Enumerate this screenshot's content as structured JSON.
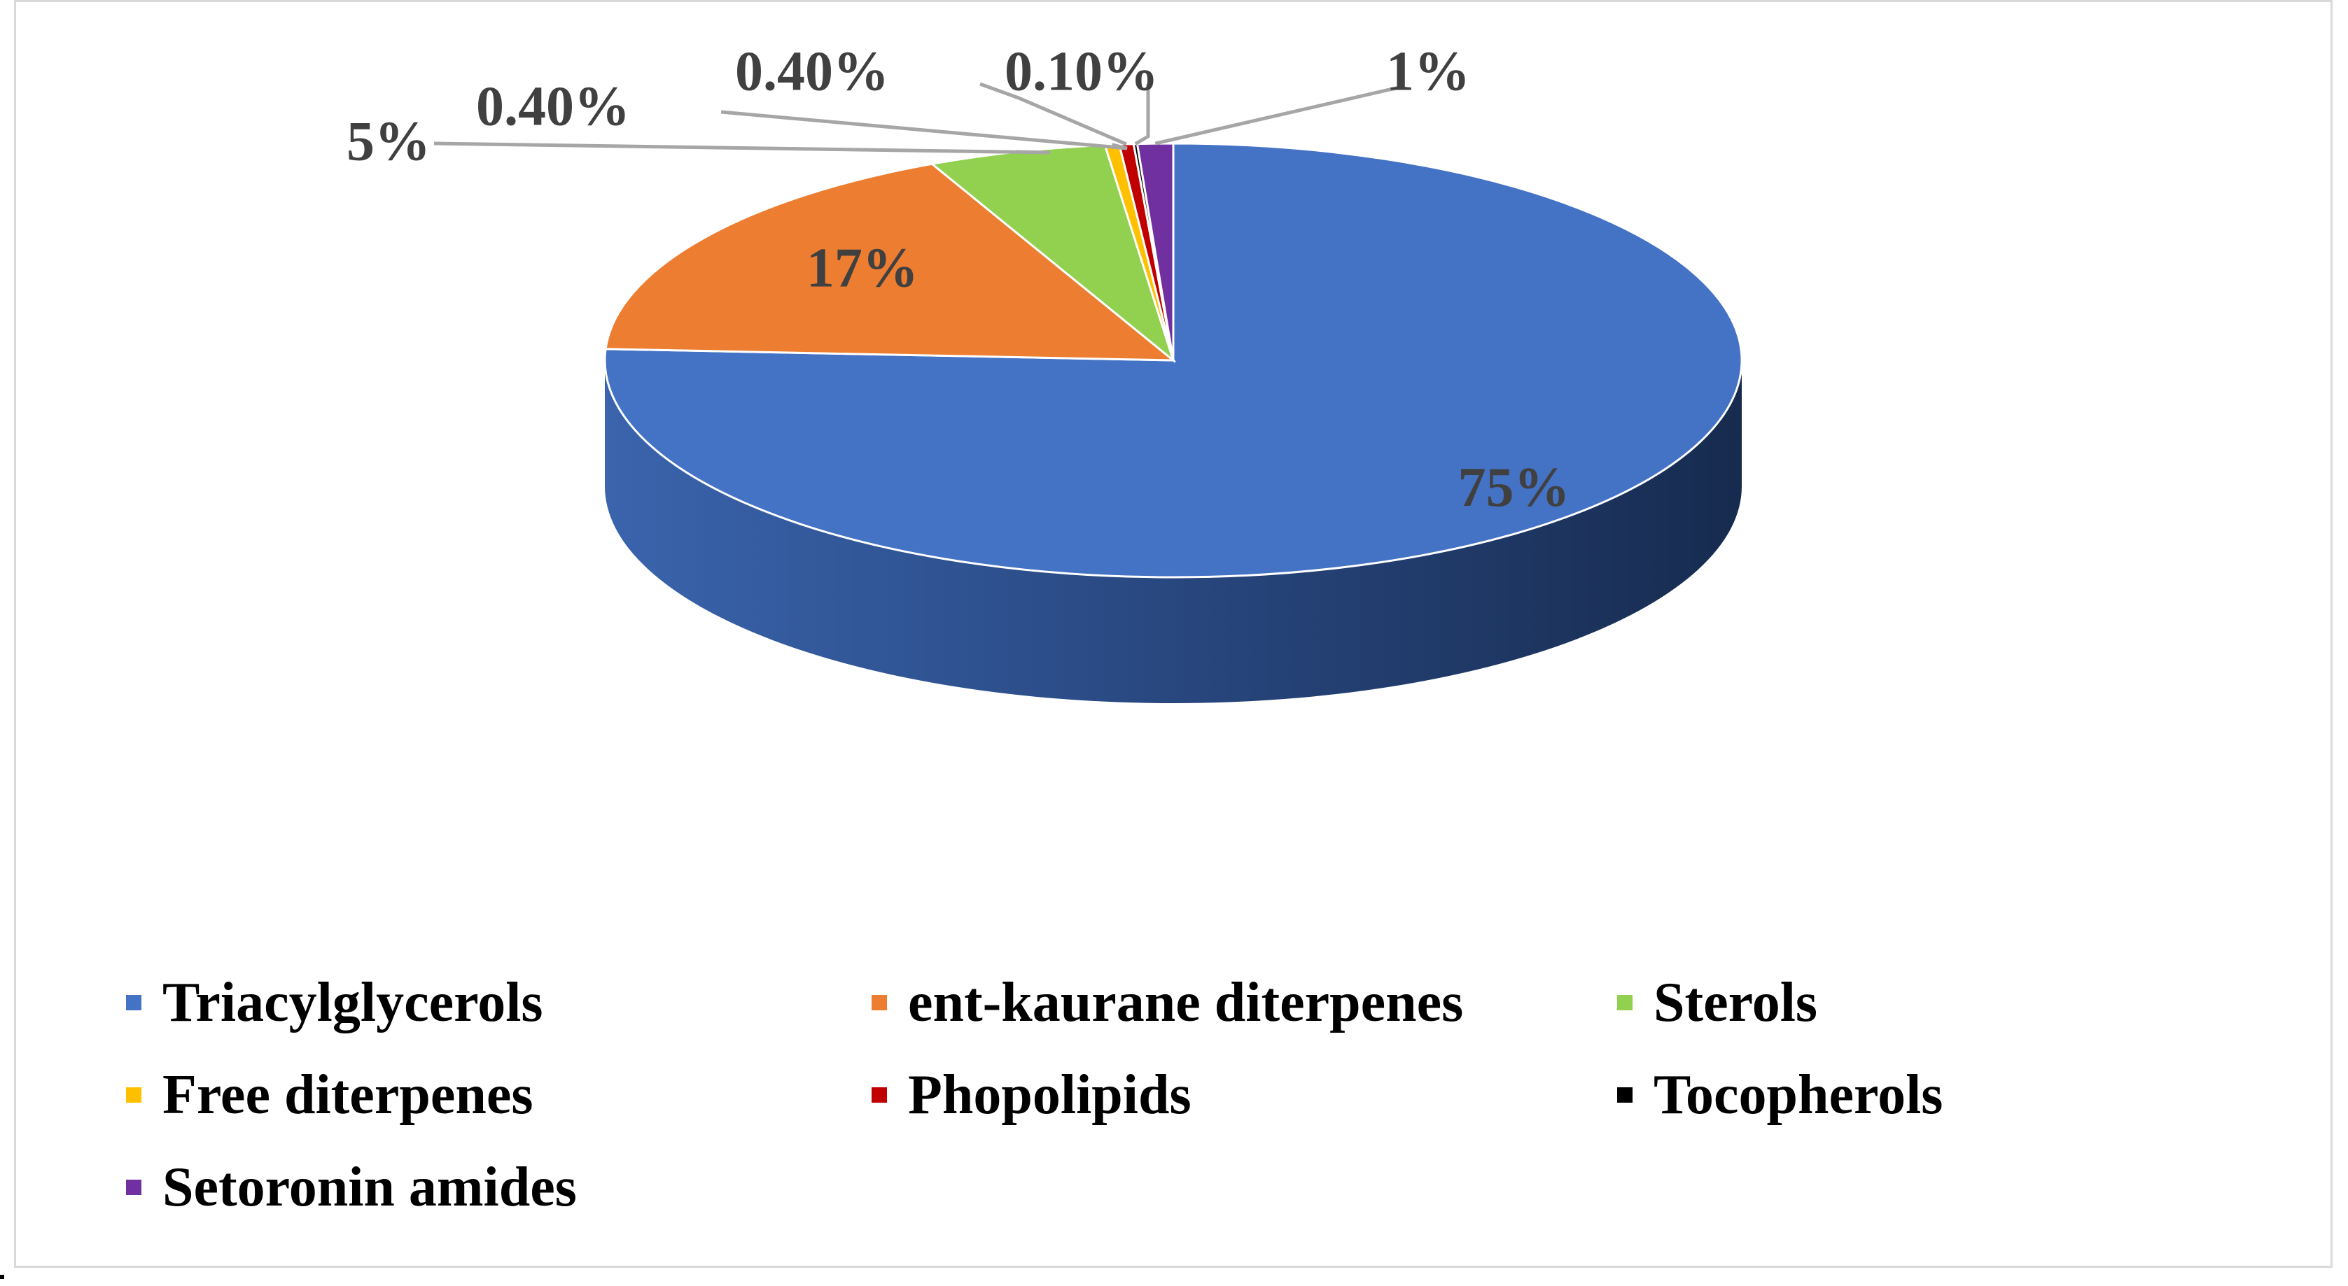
{
  "chart_data": {
    "type": "pie",
    "style": "3d",
    "title": "",
    "legend_position": "bottom",
    "slices": [
      {
        "label": "Triacylglycerols",
        "value": 75,
        "display": "75%",
        "color": "#4472C4"
      },
      {
        "label": "ent-kaurane diterpenes",
        "value": 17,
        "display": "17%",
        "color": "#ED7D31"
      },
      {
        "label": "Sterols",
        "value": 5,
        "display": "5%",
        "color": "#92D050"
      },
      {
        "label": "Free diterpenes",
        "value": 0.4,
        "display": "0.40%",
        "color": "#FFC000"
      },
      {
        "label": "Phopolipids",
        "value": 0.4,
        "display": "0.40%",
        "color": "#C00000"
      },
      {
        "label": "Tocopherols",
        "value": 0.1,
        "display": "0.10%",
        "color": "#000000"
      },
      {
        "label": "Setoronin amides",
        "value": 1,
        "display": "1%",
        "color": "#7030A0"
      }
    ]
  }
}
